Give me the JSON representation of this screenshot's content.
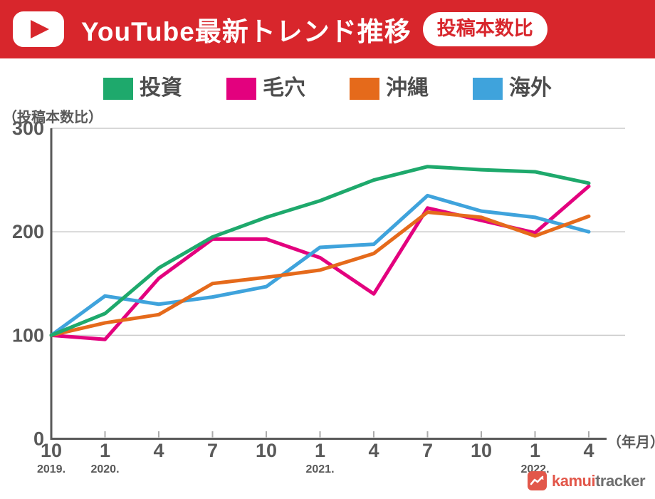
{
  "header": {
    "title": "YouTube最新トレンド推移",
    "badge": "投稿本数比",
    "accent_color": "#D8262C"
  },
  "chart_data": {
    "type": "line",
    "title": "YouTube最新トレンド推移（投稿本数比）",
    "ylabel": "（投稿本数比）",
    "xlabel": "（年月）",
    "ylim": [
      0,
      300
    ],
    "yticks": [
      0,
      100,
      200,
      300
    ],
    "grid": true,
    "legend_position": "top",
    "x_categories": [
      "10",
      "1",
      "4",
      "7",
      "10",
      "1",
      "4",
      "7",
      "10",
      "1",
      "4"
    ],
    "x_year_labels": [
      {
        "label": "2019.",
        "index": 0
      },
      {
        "label": "2020.",
        "index": 1
      },
      {
        "label": "2021.",
        "index": 5
      },
      {
        "label": "2022.",
        "index": 9
      }
    ],
    "series": [
      {
        "name": "投資",
        "color": "#1EA96C",
        "values": [
          100,
          121,
          165,
          195,
          214,
          230,
          250,
          263,
          260,
          258,
          247
        ]
      },
      {
        "name": "毛穴",
        "color": "#E3017E",
        "values": [
          100,
          96,
          155,
          193,
          193,
          175,
          140,
          223,
          211,
          199,
          244
        ]
      },
      {
        "name": "沖縄",
        "color": "#E56A1B",
        "values": [
          100,
          112,
          120,
          150,
          156,
          163,
          179,
          219,
          214,
          196,
          215
        ]
      },
      {
        "name": "海外",
        "color": "#3FA3DC",
        "values": [
          100,
          138,
          130,
          137,
          147,
          185,
          188,
          235,
          220,
          214,
          200
        ]
      }
    ],
    "axis_color": "#595959",
    "gridline_color": "#CCCCCC",
    "tick_label_color": "#595959"
  },
  "footer": {
    "logo_primary": "kamui",
    "logo_secondary": "tracker",
    "logo_color": "#E2574A"
  }
}
